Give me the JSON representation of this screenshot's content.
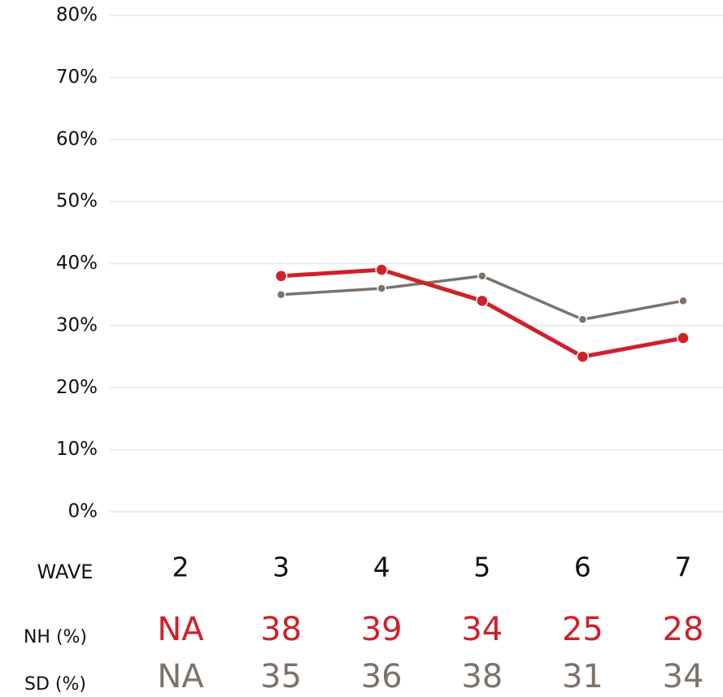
{
  "chart_data": {
    "type": "line",
    "x_label": "WAVE",
    "categories": [
      "2",
      "3",
      "4",
      "5",
      "6",
      "7"
    ],
    "series": [
      {
        "name": "NH (%)",
        "color": "#d0202a",
        "values": [
          null,
          38,
          39,
          34,
          25,
          28
        ],
        "value_labels": [
          "NA",
          "38",
          "39",
          "34",
          "25",
          "28"
        ]
      },
      {
        "name": "SD (%)",
        "color": "#7d726a",
        "values": [
          null,
          35,
          36,
          38,
          31,
          34
        ],
        "value_labels": [
          "NA",
          "35",
          "36",
          "38",
          "31",
          "34"
        ]
      }
    ],
    "ylim": [
      0,
      80
    ],
    "yticks": [
      {
        "value": 0,
        "label": "0%"
      },
      {
        "value": 10,
        "label": "10%"
      },
      {
        "value": 20,
        "label": "20%"
      },
      {
        "value": 30,
        "label": "30%"
      },
      {
        "value": 40,
        "label": "40%"
      },
      {
        "value": 50,
        "label": "50%"
      },
      {
        "value": 60,
        "label": "60%"
      },
      {
        "value": 70,
        "label": "70%"
      },
      {
        "value": 80,
        "label": "80%"
      }
    ],
    "grid": true
  }
}
